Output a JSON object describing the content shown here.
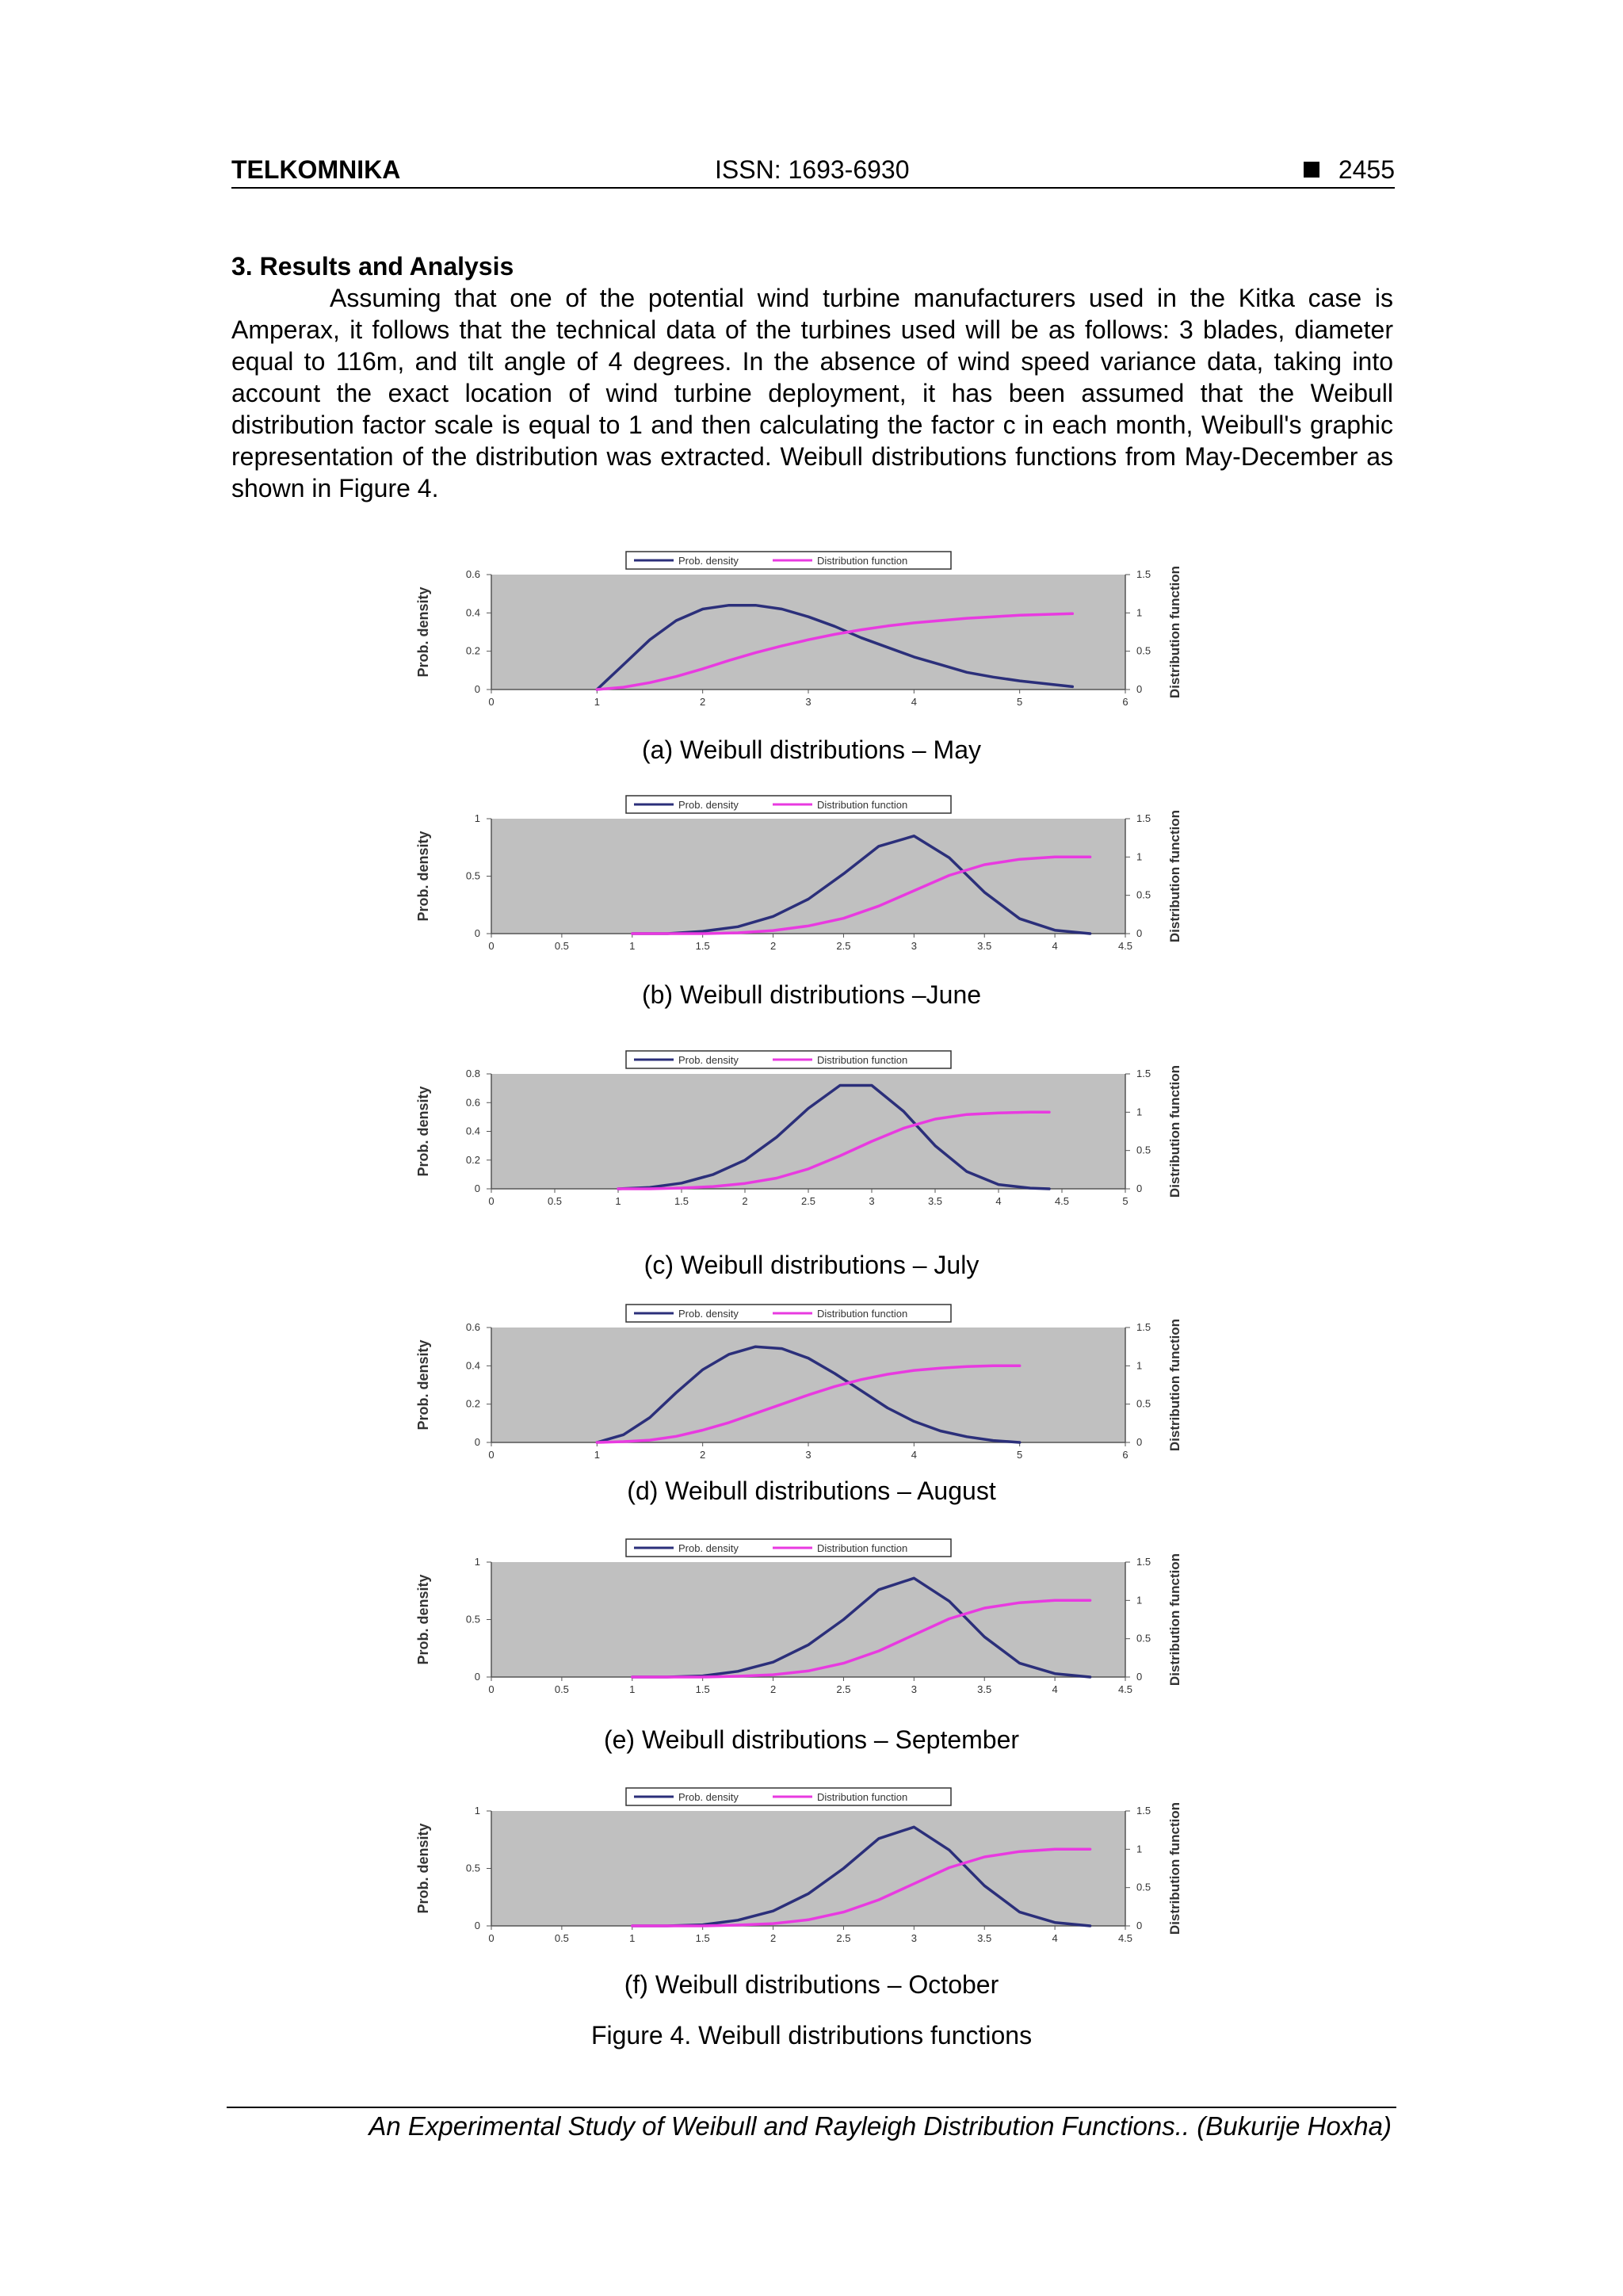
{
  "header": {
    "journal": "TELKOMNIKA",
    "issn": "ISSN: 1693-6930",
    "page_number": "2455"
  },
  "section_title": "3. Results and Analysis",
  "paragraph": "Assuming that one of the potential wind turbine manufacturers used in the Kitka case is Amperax, it follows that the technical data of the turbines used will be as follows: 3 blades, diameter equal to 116m, and tilt angle of 4 degrees. In the absence of wind speed variance data, taking into account the exact location of wind turbine deployment, it has been assumed that the Weibull distribution factor scale is equal to 1 and then calculating the factor c in each month, Weibull's graphic representation of the distribution was extracted. Weibull distributions functions from May-December as shown in Figure 4.",
  "colors": {
    "pdf_line": "#2b2f7a",
    "cdf_line": "#e83ae0",
    "plot_bg": "#c0c0c0"
  },
  "chart_data": [
    {
      "type": "line",
      "caption": "(a) Weibull distributions – May",
      "ylabel": "Prob. density",
      "y2label": "Distribution function",
      "legend": [
        "Prob. density",
        "Distribution function"
      ],
      "legend_position": "top",
      "xlim": [
        0,
        6
      ],
      "xticks": [
        "0",
        "1",
        "2",
        "3",
        "4",
        "5",
        "6"
      ],
      "ylim": [
        0,
        0.6
      ],
      "yticks": [
        "0",
        "0.2",
        "0.4",
        "0.6"
      ],
      "y2lim": [
        0,
        1.5
      ],
      "y2ticks": [
        "0",
        "0.5",
        "1",
        "1.5"
      ],
      "series": [
        {
          "name": "Prob. density",
          "x": [
            1.0,
            1.25,
            1.5,
            1.75,
            2.0,
            2.25,
            2.5,
            2.75,
            3.0,
            3.25,
            3.5,
            3.75,
            4.0,
            4.25,
            4.5,
            4.75,
            5.0,
            5.25,
            5.5
          ],
          "values": [
            0.0,
            0.13,
            0.26,
            0.36,
            0.42,
            0.44,
            0.44,
            0.42,
            0.38,
            0.33,
            0.27,
            0.22,
            0.17,
            0.13,
            0.09,
            0.065,
            0.045,
            0.03,
            0.015
          ]
        },
        {
          "name": "Distribution function",
          "x": [
            1.0,
            1.25,
            1.5,
            1.75,
            2.0,
            2.25,
            2.5,
            2.75,
            3.0,
            3.25,
            3.5,
            3.75,
            4.0,
            4.25,
            4.5,
            4.75,
            5.0,
            5.25,
            5.5
          ],
          "values": [
            0.0,
            0.03,
            0.09,
            0.17,
            0.27,
            0.38,
            0.48,
            0.57,
            0.65,
            0.72,
            0.78,
            0.83,
            0.87,
            0.9,
            0.93,
            0.95,
            0.97,
            0.98,
            0.99
          ]
        }
      ]
    },
    {
      "type": "line",
      "caption": "(b) Weibull distributions –June",
      "ylabel": "Prob. density",
      "y2label": "Distribution function",
      "legend": [
        "Prob. density",
        "Distribution function"
      ],
      "legend_position": "top",
      "xlim": [
        0,
        4.5
      ],
      "xticks": [
        "0",
        "0.5",
        "1",
        "1.5",
        "2",
        "2.5",
        "3",
        "3.5",
        "4",
        "4.5"
      ],
      "ylim": [
        0,
        1
      ],
      "yticks": [
        "0",
        "0.5",
        "1"
      ],
      "y2lim": [
        0,
        1.5
      ],
      "y2ticks": [
        "0",
        "0.5",
        "1",
        "1.5"
      ],
      "series": [
        {
          "name": "Prob. density",
          "x": [
            1.0,
            1.25,
            1.5,
            1.75,
            2.0,
            2.25,
            2.5,
            2.75,
            3.0,
            3.25,
            3.5,
            3.75,
            4.0,
            4.25
          ],
          "values": [
            0.0,
            0.0,
            0.02,
            0.06,
            0.15,
            0.3,
            0.52,
            0.76,
            0.85,
            0.66,
            0.36,
            0.13,
            0.03,
            0.0
          ]
        },
        {
          "name": "Distribution function",
          "x": [
            1.0,
            1.25,
            1.5,
            1.75,
            2.0,
            2.25,
            2.5,
            2.75,
            3.0,
            3.25,
            3.5,
            3.75,
            4.0,
            4.25
          ],
          "values": [
            0.0,
            0.0,
            0.0,
            0.01,
            0.04,
            0.1,
            0.2,
            0.36,
            0.56,
            0.76,
            0.9,
            0.97,
            1.0,
            1.0
          ]
        }
      ]
    },
    {
      "type": "line",
      "caption": "(c) Weibull distributions – July",
      "ylabel": "Prob. density",
      "y2label": "Distribution function",
      "legend": [
        "Prob. density",
        "Distribution function"
      ],
      "legend_position": "top",
      "xlim": [
        0,
        5
      ],
      "xticks": [
        "0",
        "0.5",
        "1",
        "1.5",
        "2",
        "2.5",
        "3",
        "3.5",
        "4",
        "4.5",
        "5"
      ],
      "ylim": [
        0,
        0.8
      ],
      "yticks": [
        "0",
        "0.2",
        "0.4",
        "0.6",
        "0.8"
      ],
      "y2lim": [
        0,
        1.5
      ],
      "y2ticks": [
        "0",
        "0.5",
        "1",
        "1.5"
      ],
      "series": [
        {
          "name": "Prob. density",
          "x": [
            1.0,
            1.25,
            1.5,
            1.75,
            2.0,
            2.25,
            2.5,
            2.75,
            3.0,
            3.25,
            3.5,
            3.75,
            4.0,
            4.25,
            4.4
          ],
          "values": [
            0.0,
            0.01,
            0.04,
            0.1,
            0.2,
            0.36,
            0.56,
            0.72,
            0.72,
            0.54,
            0.3,
            0.12,
            0.03,
            0.005,
            0.0
          ]
        },
        {
          "name": "Distribution function",
          "x": [
            1.0,
            1.25,
            1.5,
            1.75,
            2.0,
            2.25,
            2.5,
            2.75,
            3.0,
            3.25,
            3.5,
            3.75,
            4.0,
            4.25,
            4.4
          ],
          "values": [
            0.0,
            0.0,
            0.01,
            0.03,
            0.07,
            0.14,
            0.26,
            0.43,
            0.62,
            0.79,
            0.91,
            0.97,
            0.99,
            1.0,
            1.0
          ]
        }
      ]
    },
    {
      "type": "line",
      "caption": "(d) Weibull distributions – August",
      "ylabel": "Prob. density",
      "y2label": "Distribution function",
      "legend": [
        "Prob. density",
        "Distribution function"
      ],
      "legend_position": "top",
      "xlim": [
        0,
        6
      ],
      "xticks": [
        "0",
        "1",
        "2",
        "3",
        "4",
        "5",
        "6"
      ],
      "ylim": [
        0,
        0.6
      ],
      "yticks": [
        "0",
        "0.2",
        "0.4",
        "0.6"
      ],
      "y2lim": [
        0,
        1.5
      ],
      "y2ticks": [
        "0",
        "0.5",
        "1",
        "1.5"
      ],
      "series": [
        {
          "name": "Prob. density",
          "x": [
            1.0,
            1.25,
            1.5,
            1.75,
            2.0,
            2.25,
            2.5,
            2.75,
            3.0,
            3.25,
            3.5,
            3.75,
            4.0,
            4.25,
            4.5,
            4.75,
            5.0
          ],
          "values": [
            0.0,
            0.04,
            0.13,
            0.26,
            0.38,
            0.46,
            0.5,
            0.49,
            0.44,
            0.36,
            0.27,
            0.18,
            0.11,
            0.06,
            0.03,
            0.01,
            0.0
          ]
        },
        {
          "name": "Distribution function",
          "x": [
            1.0,
            1.25,
            1.5,
            1.75,
            2.0,
            2.25,
            2.5,
            2.75,
            3.0,
            3.25,
            3.5,
            3.75,
            4.0,
            4.25,
            4.5,
            4.75,
            5.0
          ],
          "values": [
            0.0,
            0.01,
            0.03,
            0.08,
            0.16,
            0.26,
            0.38,
            0.5,
            0.62,
            0.73,
            0.82,
            0.89,
            0.94,
            0.97,
            0.99,
            1.0,
            1.0
          ]
        }
      ]
    },
    {
      "type": "line",
      "caption": "(e) Weibull distributions – September",
      "ylabel": "Prob. density",
      "y2label": "Distribution function",
      "legend": [
        "Prob. density",
        "Distribution function"
      ],
      "legend_position": "top",
      "xlim": [
        0,
        4.5
      ],
      "xticks": [
        "0",
        "0.5",
        "1",
        "1.5",
        "2",
        "2.5",
        "3",
        "3.5",
        "4",
        "4.5"
      ],
      "ylim": [
        0,
        1
      ],
      "yticks": [
        "0",
        "0.5",
        "1"
      ],
      "y2lim": [
        0,
        1.5
      ],
      "y2ticks": [
        "0",
        "0.5",
        "1",
        "1.5"
      ],
      "series": [
        {
          "name": "Prob. density",
          "x": [
            1.0,
            1.25,
            1.5,
            1.75,
            2.0,
            2.25,
            2.5,
            2.75,
            3.0,
            3.25,
            3.5,
            3.75,
            4.0,
            4.25
          ],
          "values": [
            0.0,
            0.0,
            0.01,
            0.05,
            0.13,
            0.28,
            0.5,
            0.76,
            0.86,
            0.66,
            0.35,
            0.12,
            0.03,
            0.0
          ]
        },
        {
          "name": "Distribution function",
          "x": [
            1.0,
            1.25,
            1.5,
            1.75,
            2.0,
            2.25,
            2.5,
            2.75,
            3.0,
            3.25,
            3.5,
            3.75,
            4.0,
            4.25
          ],
          "values": [
            0.0,
            0.0,
            0.0,
            0.01,
            0.03,
            0.08,
            0.18,
            0.34,
            0.55,
            0.76,
            0.9,
            0.97,
            1.0,
            1.0
          ]
        }
      ]
    },
    {
      "type": "line",
      "caption": "(f) Weibull distributions – October",
      "ylabel": "Prob. density",
      "y2label": "Distribution function",
      "legend": [
        "Prob. density",
        "Distribution function"
      ],
      "legend_position": "top",
      "xlim": [
        0,
        4.5
      ],
      "xticks": [
        "0",
        "0.5",
        "1",
        "1.5",
        "2",
        "2.5",
        "3",
        "3.5",
        "4",
        "4.5"
      ],
      "ylim": [
        0,
        1
      ],
      "yticks": [
        "0",
        "0.5",
        "1"
      ],
      "y2lim": [
        0,
        1.5
      ],
      "y2ticks": [
        "0",
        "0.5",
        "1",
        "1.5"
      ],
      "series": [
        {
          "name": "Prob. density",
          "x": [
            1.0,
            1.25,
            1.5,
            1.75,
            2.0,
            2.25,
            2.5,
            2.75,
            3.0,
            3.25,
            3.5,
            3.75,
            4.0,
            4.25
          ],
          "values": [
            0.0,
            0.0,
            0.01,
            0.05,
            0.13,
            0.28,
            0.5,
            0.76,
            0.86,
            0.66,
            0.35,
            0.12,
            0.03,
            0.0
          ]
        },
        {
          "name": "Distribution function",
          "x": [
            1.0,
            1.25,
            1.5,
            1.75,
            2.0,
            2.25,
            2.5,
            2.75,
            3.0,
            3.25,
            3.5,
            3.75,
            4.0,
            4.25
          ],
          "values": [
            0.0,
            0.0,
            0.0,
            0.01,
            0.03,
            0.08,
            0.18,
            0.34,
            0.55,
            0.76,
            0.9,
            0.97,
            1.0,
            1.0
          ]
        }
      ]
    }
  ],
  "figure_caption": "Figure 4. Weibull distributions functions",
  "footer": "An Experimental Study of Weibull and Rayleigh Distribution Functions..  (Bukurije Hoxha)"
}
